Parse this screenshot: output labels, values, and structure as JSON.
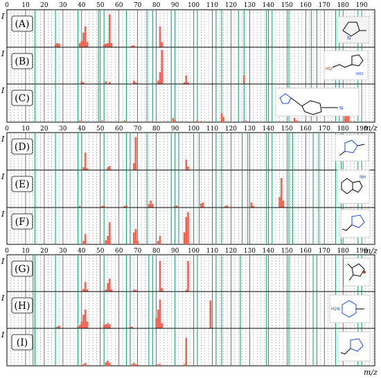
{
  "axis": {
    "ticks": [
      0,
      10,
      20,
      30,
      40,
      50,
      60,
      70,
      80,
      90,
      100,
      110,
      120,
      130,
      140,
      150,
      160,
      170,
      180,
      190
    ],
    "xlabel": "m/z",
    "ylabel": "I",
    "xlim": [
      0,
      197
    ]
  },
  "colors": {
    "bar": "#f4624f",
    "green_line": "#1aa37a",
    "grid": "#666666",
    "frame": "#000000"
  },
  "chart_data": [
    {
      "type": "bar",
      "panel": "(A)",
      "peaks": [
        {
          "mz": 26,
          "I": 0.08
        },
        {
          "mz": 27,
          "I": 0.12
        },
        {
          "mz": 28,
          "I": 0.1
        },
        {
          "mz": 39,
          "I": 0.12
        },
        {
          "mz": 40,
          "I": 0.18
        },
        {
          "mz": 41,
          "I": 0.42
        },
        {
          "mz": 42,
          "I": 0.6
        },
        {
          "mz": 43,
          "I": 0.15
        },
        {
          "mz": 52,
          "I": 0.08
        },
        {
          "mz": 53,
          "I": 0.1
        },
        {
          "mz": 54,
          "I": 0.12
        },
        {
          "mz": 55,
          "I": 0.95
        },
        {
          "mz": 56,
          "I": 0.12
        },
        {
          "mz": 67,
          "I": 0.05
        },
        {
          "mz": 68,
          "I": 0.05
        },
        {
          "mz": 82,
          "I": 0.6
        },
        {
          "mz": 83,
          "I": 0.15
        }
      ]
    },
    {
      "type": "bar",
      "panel": "(B)",
      "peaks": [
        {
          "mz": 40,
          "I": 0.08
        },
        {
          "mz": 41,
          "I": 0.05
        },
        {
          "mz": 53,
          "I": 0.08
        },
        {
          "mz": 55,
          "I": 0.06
        },
        {
          "mz": 68,
          "I": 0.1
        },
        {
          "mz": 69,
          "I": 0.05
        },
        {
          "mz": 81,
          "I": 0.1
        },
        {
          "mz": 82,
          "I": 0.35
        },
        {
          "mz": 83,
          "I": 1.0
        },
        {
          "mz": 95,
          "I": 0.05
        },
        {
          "mz": 96,
          "I": 0.25
        },
        {
          "mz": 97,
          "I": 0.05
        },
        {
          "mz": 110,
          "I": 0.03
        },
        {
          "mz": 127,
          "I": 0.25
        }
      ]
    },
    {
      "type": "bar",
      "panel": "(C)",
      "peaks": [
        {
          "mz": 39,
          "I": 0.05
        },
        {
          "mz": 51,
          "I": 0.05
        },
        {
          "mz": 63,
          "I": 0.05
        },
        {
          "mz": 77,
          "I": 0.03
        },
        {
          "mz": 89,
          "I": 0.12
        },
        {
          "mz": 90,
          "I": 0.06
        },
        {
          "mz": 102,
          "I": 0.05
        },
        {
          "mz": 115,
          "I": 0.25
        },
        {
          "mz": 116,
          "I": 0.15
        },
        {
          "mz": 128,
          "I": 0.05
        },
        {
          "mz": 154,
          "I": 0.12
        },
        {
          "mz": 155,
          "I": 0.05
        },
        {
          "mz": 181,
          "I": 0.25
        },
        {
          "mz": 182,
          "I": 0.3
        },
        {
          "mz": 183,
          "I": 0.95
        }
      ]
    },
    {
      "type": "bar",
      "panel": "(D)",
      "peaks": [
        {
          "mz": 41,
          "I": 0.08
        },
        {
          "mz": 42,
          "I": 0.5
        },
        {
          "mz": 43,
          "I": 0.05
        },
        {
          "mz": 54,
          "I": 0.08
        },
        {
          "mz": 55,
          "I": 0.12
        },
        {
          "mz": 68,
          "I": 0.2
        },
        {
          "mz": 69,
          "I": 0.95
        },
        {
          "mz": 96,
          "I": 0.3
        },
        {
          "mz": 97,
          "I": 0.1
        }
      ]
    },
    {
      "type": "bar",
      "panel": "(E)",
      "peaks": [
        {
          "mz": 39,
          "I": 0.05
        },
        {
          "mz": 51,
          "I": 0.05
        },
        {
          "mz": 52,
          "I": 0.06
        },
        {
          "mz": 63,
          "I": 0.05
        },
        {
          "mz": 64,
          "I": 0.06
        },
        {
          "mz": 76,
          "I": 0.1
        },
        {
          "mz": 77,
          "I": 0.2
        },
        {
          "mz": 78,
          "I": 0.1
        },
        {
          "mz": 90,
          "I": 0.05
        },
        {
          "mz": 91,
          "I": 0.06
        },
        {
          "mz": 104,
          "I": 0.12
        },
        {
          "mz": 105,
          "I": 0.15
        },
        {
          "mz": 117,
          "I": 0.05
        },
        {
          "mz": 118,
          "I": 0.06
        },
        {
          "mz": 131,
          "I": 0.15
        },
        {
          "mz": 132,
          "I": 0.05
        },
        {
          "mz": 146,
          "I": 0.3
        },
        {
          "mz": 147,
          "I": 0.85
        },
        {
          "mz": 148,
          "I": 0.2
        }
      ]
    },
    {
      "type": "bar",
      "panel": "(F)",
      "peaks": [
        {
          "mz": 41,
          "I": 0.1
        },
        {
          "mz": 42,
          "I": 0.3
        },
        {
          "mz": 53,
          "I": 0.12
        },
        {
          "mz": 54,
          "I": 0.25
        },
        {
          "mz": 55,
          "I": 0.65
        },
        {
          "mz": 68,
          "I": 0.35
        },
        {
          "mz": 69,
          "I": 0.45
        },
        {
          "mz": 70,
          "I": 0.1
        },
        {
          "mz": 81,
          "I": 0.1
        },
        {
          "mz": 82,
          "I": 0.25
        },
        {
          "mz": 95,
          "I": 0.35
        },
        {
          "mz": 96,
          "I": 0.8
        },
        {
          "mz": 97,
          "I": 0.95
        }
      ]
    },
    {
      "type": "bar",
      "panel": "(G)",
      "peaks": [
        {
          "mz": 41,
          "I": 0.08
        },
        {
          "mz": 42,
          "I": 0.28
        },
        {
          "mz": 43,
          "I": 0.06
        },
        {
          "mz": 53,
          "I": 0.06
        },
        {
          "mz": 54,
          "I": 0.25
        },
        {
          "mz": 55,
          "I": 0.38
        },
        {
          "mz": 56,
          "I": 0.06
        },
        {
          "mz": 68,
          "I": 0.05
        },
        {
          "mz": 69,
          "I": 0.05
        },
        {
          "mz": 82,
          "I": 0.9
        },
        {
          "mz": 83,
          "I": 0.1
        },
        {
          "mz": 96,
          "I": 0.05
        },
        {
          "mz": 97,
          "I": 0.9
        }
      ]
    },
    {
      "type": "bar",
      "panel": "(H)",
      "peaks": [
        {
          "mz": 27,
          "I": 0.05
        },
        {
          "mz": 28,
          "I": 0.08
        },
        {
          "mz": 38,
          "I": 0.05
        },
        {
          "mz": 39,
          "I": 0.1
        },
        {
          "mz": 40,
          "I": 0.2
        },
        {
          "mz": 41,
          "I": 0.4
        },
        {
          "mz": 42,
          "I": 0.55
        },
        {
          "mz": 43,
          "I": 0.2
        },
        {
          "mz": 52,
          "I": 0.1
        },
        {
          "mz": 53,
          "I": 0.12
        },
        {
          "mz": 54,
          "I": 0.15
        },
        {
          "mz": 55,
          "I": 0.12
        },
        {
          "mz": 66,
          "I": 0.05
        },
        {
          "mz": 67,
          "I": 0.05
        },
        {
          "mz": 80,
          "I": 0.3
        },
        {
          "mz": 81,
          "I": 0.55
        },
        {
          "mz": 82,
          "I": 0.85
        },
        {
          "mz": 83,
          "I": 0.15
        },
        {
          "mz": 109,
          "I": 0.82
        }
      ]
    },
    {
      "type": "bar",
      "panel": "(I)",
      "peaks": [
        {
          "mz": 41,
          "I": 0.05
        },
        {
          "mz": 42,
          "I": 0.08
        },
        {
          "mz": 53,
          "I": 0.1
        },
        {
          "mz": 54,
          "I": 0.15
        },
        {
          "mz": 55,
          "I": 0.08
        },
        {
          "mz": 67,
          "I": 0.05
        },
        {
          "mz": 68,
          "I": 0.08
        },
        {
          "mz": 69,
          "I": 0.05
        },
        {
          "mz": 81,
          "I": 0.05
        },
        {
          "mz": 82,
          "I": 0.05
        },
        {
          "mz": 95,
          "I": 0.05
        },
        {
          "mz": 96,
          "I": 0.8
        }
      ]
    }
  ],
  "green_lines": [
    [
      15,
      26,
      38,
      49,
      52,
      64,
      75,
      78,
      88,
      90,
      100,
      102,
      112,
      115,
      124,
      127,
      139,
      142,
      151,
      163,
      166,
      176,
      178,
      188
    ],
    [
      15,
      26,
      38,
      40,
      52,
      64,
      66,
      75,
      88,
      90,
      92,
      100,
      103,
      112,
      115,
      126,
      129,
      139,
      142,
      151,
      153,
      164,
      167,
      176,
      179,
      188
    ],
    [
      14,
      15,
      26,
      38,
      52,
      64,
      66,
      76,
      78,
      90,
      100,
      102,
      112,
      115,
      125,
      139,
      151,
      164,
      166,
      176,
      188,
      190
    ]
  ],
  "structures": [
    "2-methyl-1-pyrroline",
    "hydroxyethyl aminopyrazole",
    "pyrazolylmethyl benzonitrile",
    "dimethyl triazole",
    "methyl imino indazole",
    "ethyl triazole",
    "dimethyl oxazole",
    "aminomethyl pyrimidine",
    "ethyl pyrazole"
  ]
}
